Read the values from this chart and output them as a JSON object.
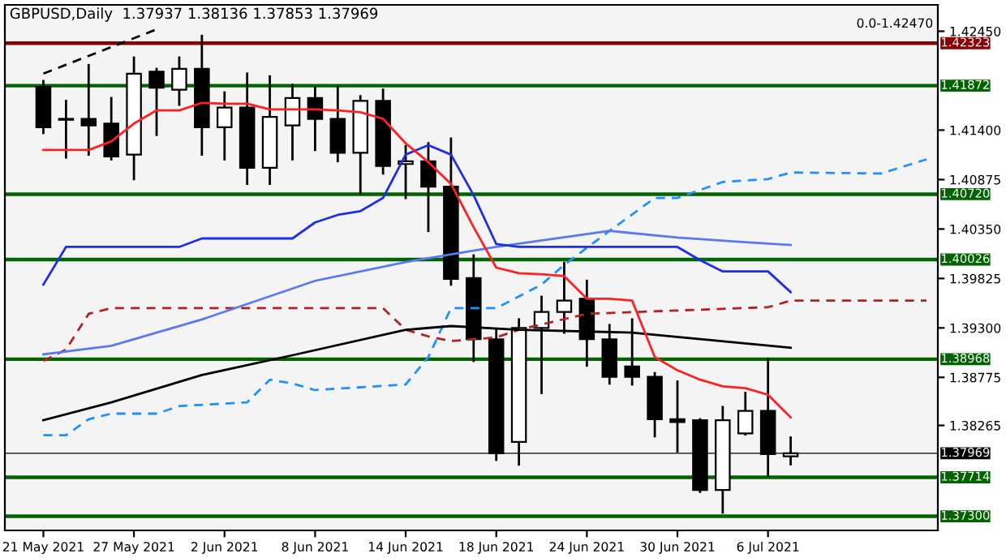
{
  "chart_data": {
    "type": "candlestick",
    "title": "GBPUSD,Daily  1.37937 1.38136 1.37853 1.37969",
    "annotations": [
      "0.0-1.42470"
    ],
    "categories": [
      "21 May 2021",
      null,
      null,
      null,
      "27 May 2021",
      null,
      null,
      null,
      "2 Jun 2021",
      null,
      null,
      null,
      "8 Jun 2021",
      null,
      null,
      null,
      "14 Jun 2021",
      null,
      null,
      null,
      "18 Jun 2021",
      null,
      null,
      null,
      "24 Jun 2021",
      null,
      null,
      null,
      "30 Jun 2021",
      null,
      null,
      null,
      "6 Jul 2021",
      null,
      null,
      null,
      null,
      null,
      null,
      null
    ],
    "ohlc": [
      [
        1.4186,
        1.4192,
        1.4137,
        1.4143
      ],
      [
        1.4152,
        1.4171,
        1.4111,
        1.4151
      ],
      [
        1.4152,
        1.4209,
        1.4114,
        1.4145
      ],
      [
        1.4147,
        1.4174,
        1.4109,
        1.4112
      ],
      [
        1.4114,
        1.4217,
        1.4088,
        1.42
      ],
      [
        1.4202,
        1.4205,
        1.4135,
        1.4185
      ],
      [
        1.4183,
        1.4217,
        1.4167,
        1.4205
      ],
      [
        1.4205,
        1.424,
        1.4114,
        1.4143
      ],
      [
        1.4143,
        1.418,
        1.4109,
        1.4164
      ],
      [
        1.4164,
        1.42,
        1.4083,
        1.41
      ],
      [
        1.41,
        1.4197,
        1.4083,
        1.4154
      ],
      [
        1.4145,
        1.4188,
        1.4109,
        1.4174
      ],
      [
        1.4174,
        1.4185,
        1.4119,
        1.4152
      ],
      [
        1.4152,
        1.4186,
        1.4107,
        1.4116
      ],
      [
        1.4116,
        1.4176,
        1.4073,
        1.4171
      ],
      [
        1.4171,
        1.4183,
        1.4094,
        1.4102
      ],
      [
        1.4104,
        1.4123,
        1.4068,
        1.4107
      ],
      [
        1.4107,
        1.4126,
        1.4033,
        1.408
      ],
      [
        1.408,
        1.4131,
        1.3976,
        1.3982
      ],
      [
        1.3983,
        1.4007,
        1.3895,
        1.3918
      ],
      [
        1.3918,
        1.3928,
        1.379,
        1.3797
      ],
      [
        1.3809,
        1.3939,
        1.3785,
        1.393
      ],
      [
        1.393,
        1.3963,
        1.3861,
        1.3947
      ],
      [
        1.3947,
        1.3999,
        1.3925,
        1.3959
      ],
      [
        1.3961,
        1.398,
        1.389,
        1.3918
      ],
      [
        1.3918,
        1.3933,
        1.3871,
        1.3878
      ],
      [
        1.3889,
        1.3939,
        1.387,
        1.3878
      ],
      [
        1.3878,
        1.3882,
        1.3815,
        1.3833
      ],
      [
        1.3833,
        1.3873,
        1.3799,
        1.383
      ],
      [
        1.3832,
        1.3833,
        1.3756,
        1.3758
      ],
      [
        1.3758,
        1.3846,
        1.3734,
        1.3832
      ],
      [
        1.3818,
        1.3861,
        1.3817,
        1.3842
      ],
      [
        1.3842,
        1.3897,
        1.3773,
        1.3796
      ],
      [
        1.37937,
        1.38136,
        1.37853,
        1.37969
      ],
      null,
      null,
      null,
      null,
      null,
      null
    ],
    "series": [
      {
        "type": "line",
        "color": "#1e90ff",
        "line_style": "dashed",
        "values": [
          1.3816,
          1.3816,
          1.3833,
          1.3839,
          null,
          1.3839,
          1.3847,
          null,
          null,
          1.3851,
          1.3875,
          1.3871,
          1.3864,
          null,
          null,
          null,
          1.387,
          1.3899,
          1.3951,
          null,
          1.3951,
          null,
          1.3976,
          1.3997,
          null,
          1.4033,
          null,
          1.4068,
          1.4068,
          null,
          1.4085,
          null,
          1.4088,
          1.4095,
          null,
          null,
          null,
          1.4094,
          null,
          1.4109
        ]
      },
      {
        "type": "line",
        "color": "#b22222",
        "line_style": "dashed",
        "values": [
          1.3895,
          1.3907,
          1.3945,
          1.3951,
          null,
          null,
          null,
          null,
          null,
          null,
          null,
          null,
          null,
          null,
          null,
          1.3951,
          1.3928,
          1.3921,
          1.3916,
          null,
          1.392,
          1.3928,
          null,
          null,
          1.3945,
          null,
          null,
          null,
          null,
          null,
          null,
          null,
          1.3952,
          1.3959,
          null,
          null,
          null,
          null,
          null,
          1.3959
        ]
      },
      {
        "type": "line",
        "color": "#000000",
        "line_style": "solid",
        "values": [
          1.3832,
          null,
          null,
          1.3851,
          null,
          null,
          null,
          1.388,
          null,
          null,
          null,
          1.3901,
          null,
          null,
          null,
          null,
          1.3928,
          null,
          1.3932,
          null,
          null,
          1.3928,
          null,
          null,
          null,
          null,
          1.3925,
          null,
          null,
          null,
          null,
          null,
          null,
          1.3909,
          null,
          null,
          null,
          null,
          null,
          null
        ]
      },
      {
        "type": "line",
        "color": "#5a78f0",
        "line_style": "solid",
        "values": [
          1.3902,
          null,
          null,
          1.3911,
          null,
          null,
          null,
          1.3939,
          null,
          null,
          null,
          null,
          1.398,
          null,
          null,
          null,
          1.4,
          null,
          null,
          null,
          1.4016,
          null,
          null,
          null,
          null,
          1.4033,
          null,
          null,
          1.4026,
          null,
          null,
          1.4021,
          null,
          1.4018,
          null,
          null,
          null,
          null,
          null,
          null
        ]
      },
      {
        "type": "line",
        "color": "#1c2ee6",
        "line_style": "solid",
        "values": [
          1.3976,
          1.4016,
          null,
          null,
          null,
          null,
          1.4016,
          1.4025,
          null,
          null,
          null,
          1.4025,
          1.4042,
          1.405,
          1.4054,
          1.4068,
          1.4114,
          1.4124,
          1.4114,
          1.4071,
          1.4019,
          1.4016,
          null,
          null,
          null,
          null,
          null,
          null,
          1.4016,
          1.4002,
          1.399,
          null,
          1.399,
          1.3968,
          null,
          null,
          null,
          null,
          null,
          null
        ]
      },
      {
        "type": "line",
        "color": "#ff2020",
        "line_style": "solid",
        "values": [
          1.4119,
          1.4119,
          1.4119,
          1.4128,
          1.4147,
          1.4161,
          1.4161,
          1.4169,
          1.4168,
          1.4168,
          1.4162,
          1.4162,
          1.4162,
          1.4161,
          1.4159,
          1.4152,
          1.4126,
          1.4106,
          1.4083,
          1.4037,
          1.3994,
          1.3988,
          1.3987,
          1.3985,
          1.3961,
          1.3961,
          1.3959,
          1.3899,
          1.3885,
          1.3875,
          1.3868,
          1.3866,
          1.3859,
          1.3835,
          null,
          null,
          null,
          null,
          null,
          null
        ]
      },
      {
        "type": "line",
        "color": "#000000",
        "line_style": "dashed",
        "values": [
          1.42,
          null,
          null,
          null,
          null,
          1.4247,
          null,
          null,
          null,
          null,
          null,
          null,
          null,
          null,
          null,
          null,
          null,
          null,
          null,
          null,
          null,
          null,
          null,
          null,
          null,
          null,
          null,
          null,
          null,
          null,
          null,
          null,
          null,
          null,
          null,
          null,
          null,
          null,
          null,
          null
        ]
      }
    ],
    "ref_lines": [
      {
        "axis": "y",
        "value": 1.42323,
        "label": "1.42323",
        "color": "#8b0000"
      },
      {
        "axis": "y",
        "value": 1.41872,
        "label": "1.41872",
        "color": "#006400"
      },
      {
        "axis": "y",
        "value": 1.4072,
        "label": "1.40720",
        "color": "#006400"
      },
      {
        "axis": "y",
        "value": 1.40026,
        "label": "1.40026",
        "color": "#006400"
      },
      {
        "axis": "y",
        "value": 1.38968,
        "label": "1.38968",
        "color": "#006400"
      },
      {
        "axis": "y",
        "value": 1.37714,
        "label": "1.37714",
        "color": "#006400"
      },
      {
        "axis": "y",
        "value": 1.373,
        "label": "1.37300",
        "color": "#006400"
      },
      {
        "axis": "y",
        "value": 1.37969,
        "label": "1.37969",
        "color": "#000000"
      }
    ],
    "ylim": [
      1.3715,
      1.4273
    ],
    "yticks": [
      {
        "value": 1.4245,
        "label": "1.42450"
      },
      {
        "value": 1.414,
        "label": "1.41400"
      },
      {
        "value": 1.40875,
        "label": "1.40875"
      },
      {
        "value": 1.4035,
        "label": "1.40350"
      },
      {
        "value": 1.39825,
        "label": "1.39825"
      },
      {
        "value": 1.393,
        "label": "1.39300"
      },
      {
        "value": 1.38775,
        "label": "1.38775"
      },
      {
        "value": 1.38265,
        "label": "1.38265"
      }
    ],
    "grid": false,
    "legend": false
  }
}
